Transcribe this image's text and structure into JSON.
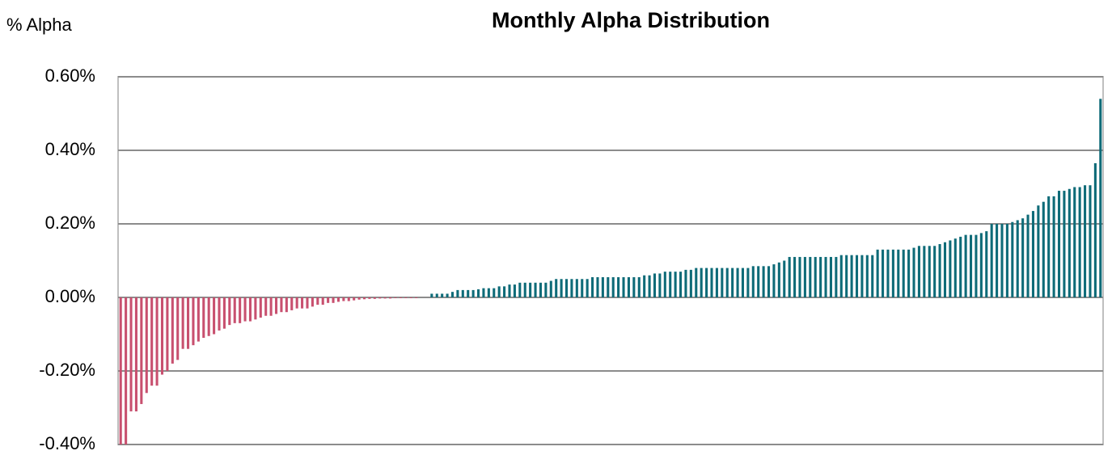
{
  "chart_data": {
    "type": "bar",
    "title": "Monthly Alpha Distribution",
    "y_label": "% Alpha",
    "ylim": [
      -0.4,
      0.6
    ],
    "yticks": [
      {
        "value": -0.4,
        "label": "-0.40%"
      },
      {
        "value": -0.2,
        "label": "-0.20%"
      },
      {
        "value": 0,
        "label": "0.00%"
      },
      {
        "value": 0.2,
        "label": "0.20%"
      },
      {
        "value": 0.4,
        "label": "0.40%"
      },
      {
        "value": 0.6,
        "label": "0.60%"
      }
    ],
    "grid": true,
    "negative_color": "#c8506f",
    "positive_color": "#0e6b78",
    "values": [
      -0.4,
      -0.4,
      -0.31,
      -0.31,
      -0.29,
      -0.26,
      -0.24,
      -0.24,
      -0.21,
      -0.2,
      -0.18,
      -0.17,
      -0.14,
      -0.14,
      -0.13,
      -0.12,
      -0.11,
      -0.105,
      -0.1,
      -0.09,
      -0.085,
      -0.075,
      -0.07,
      -0.07,
      -0.065,
      -0.065,
      -0.06,
      -0.055,
      -0.05,
      -0.05,
      -0.045,
      -0.04,
      -0.04,
      -0.035,
      -0.03,
      -0.03,
      -0.03,
      -0.025,
      -0.02,
      -0.02,
      -0.015,
      -0.015,
      -0.012,
      -0.01,
      -0.01,
      -0.008,
      -0.006,
      -0.005,
      -0.004,
      -0.004,
      -0.003,
      -0.003,
      -0.003,
      -0.002,
      -0.002,
      -0.002,
      -0.002,
      -0.002,
      0,
      0,
      0.01,
      0.01,
      0.01,
      0.01,
      0.015,
      0.02,
      0.02,
      0.02,
      0.02,
      0.022,
      0.025,
      0.025,
      0.025,
      0.03,
      0.03,
      0.035,
      0.035,
      0.04,
      0.04,
      0.04,
      0.04,
      0.04,
      0.04,
      0.045,
      0.05,
      0.05,
      0.05,
      0.05,
      0.05,
      0.05,
      0.05,
      0.055,
      0.055,
      0.055,
      0.055,
      0.055,
      0.055,
      0.055,
      0.055,
      0.055,
      0.055,
      0.06,
      0.06,
      0.065,
      0.065,
      0.07,
      0.07,
      0.07,
      0.07,
      0.075,
      0.075,
      0.08,
      0.08,
      0.08,
      0.08,
      0.08,
      0.08,
      0.08,
      0.08,
      0.08,
      0.08,
      0.08,
      0.085,
      0.085,
      0.085,
      0.085,
      0.09,
      0.095,
      0.1,
      0.11,
      0.11,
      0.11,
      0.11,
      0.11,
      0.11,
      0.11,
      0.11,
      0.11,
      0.11,
      0.115,
      0.115,
      0.115,
      0.115,
      0.115,
      0.115,
      0.115,
      0.13,
      0.13,
      0.13,
      0.13,
      0.13,
      0.13,
      0.13,
      0.135,
      0.14,
      0.14,
      0.14,
      0.14,
      0.145,
      0.15,
      0.155,
      0.16,
      0.165,
      0.17,
      0.17,
      0.17,
      0.175,
      0.18,
      0.2,
      0.2,
      0.2,
      0.2,
      0.205,
      0.21,
      0.215,
      0.225,
      0.235,
      0.25,
      0.26,
      0.275,
      0.275,
      0.29,
      0.29,
      0.295,
      0.3,
      0.3,
      0.305,
      0.305,
      0.365,
      0.54
    ]
  }
}
